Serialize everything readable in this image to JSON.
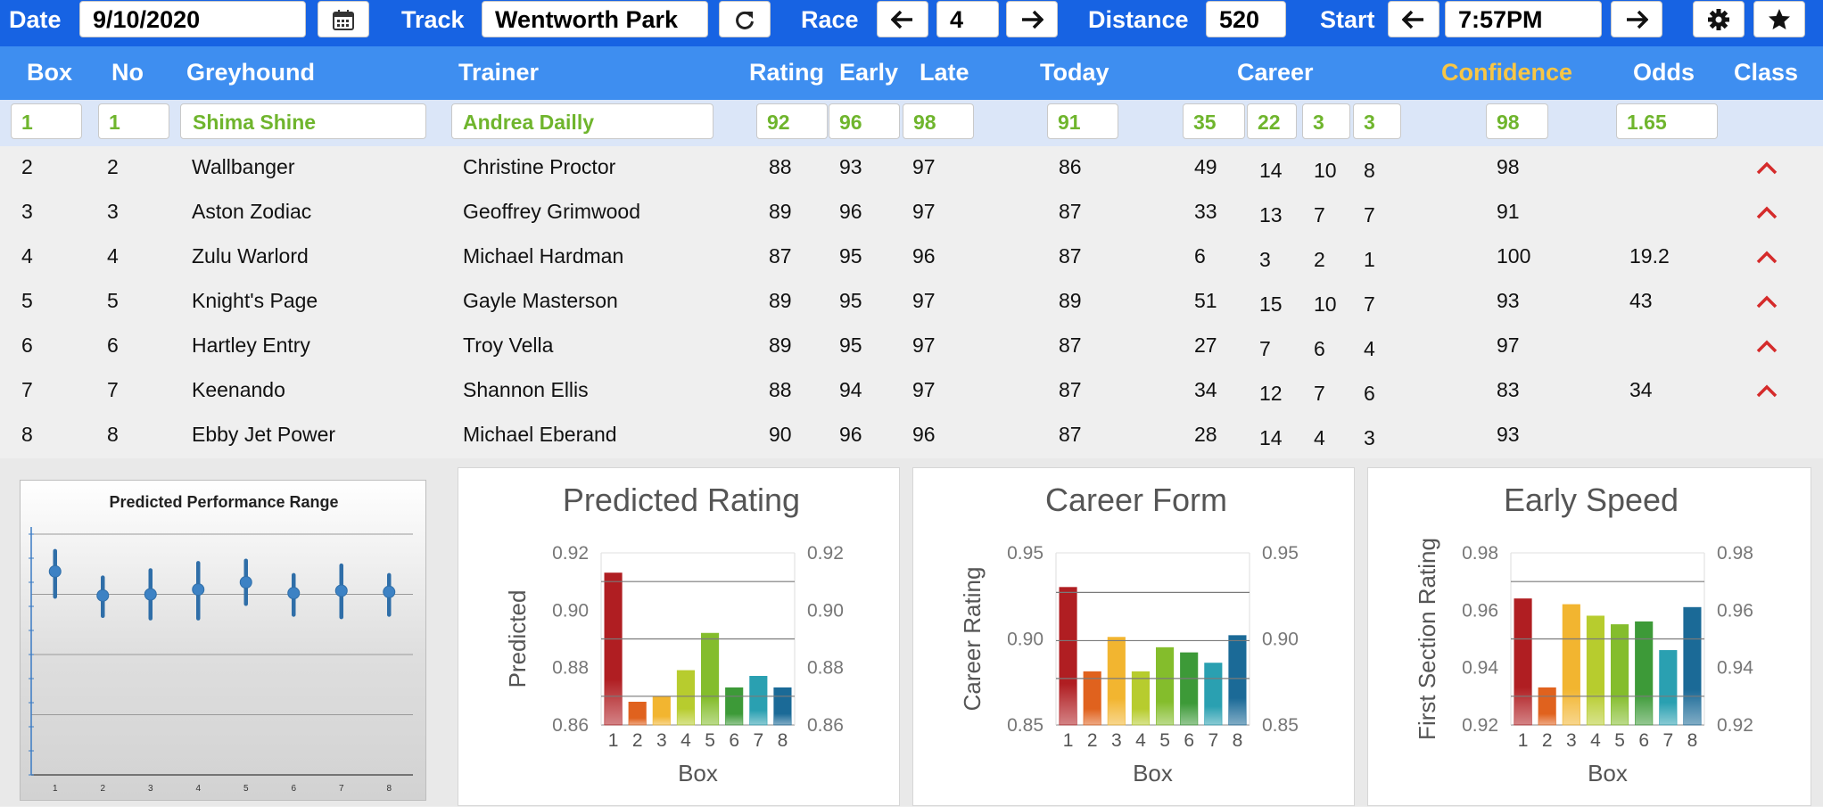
{
  "toolbar": {
    "date_label": "Date",
    "date_value": "9/10/2020",
    "calendar_icon": "calendar-icon",
    "track_label": "Track",
    "track_value": "Wentworth Park",
    "refresh_icon": "refresh-icon",
    "race_label": "Race",
    "race_value": "4",
    "distance_label": "Distance",
    "distance_value": "520",
    "start_label": "Start",
    "start_value": "7:57PM",
    "settings_icon": "gear-icon",
    "favorite_icon": "star-icon",
    "prev_icon": "arrow-left-icon",
    "next_icon": "arrow-right-icon"
  },
  "columns": {
    "box": "Box",
    "no": "No",
    "greyhound": "Greyhound",
    "trainer": "Trainer",
    "rating": "Rating",
    "early": "Early",
    "late": "Late",
    "today": "Today",
    "career": "Career",
    "confidence": "Confidence",
    "odds": "Odds",
    "class": "Class"
  },
  "selected": {
    "box": "1",
    "no": "1",
    "greyhound": "Shima Shine",
    "trainer": "Andrea Dailly",
    "rating": "92",
    "early": "96",
    "late": "98",
    "today": "91",
    "career": [
      "35",
      "22",
      "3",
      "3"
    ],
    "confidence": "98",
    "odds": "1.65"
  },
  "rows": [
    {
      "box": "2",
      "no": "2",
      "greyhound": "Wallbanger",
      "trainer": "Christine Proctor",
      "rating": "88",
      "early": "93",
      "late": "97",
      "today": "86",
      "c1": "49",
      "c2": "14",
      "c3": "10",
      "c4": "8",
      "confidence": "98",
      "odds": "",
      "class_up": true
    },
    {
      "box": "3",
      "no": "3",
      "greyhound": "Aston Zodiac",
      "trainer": "Geoffrey Grimwood",
      "rating": "89",
      "early": "96",
      "late": "97",
      "today": "87",
      "c1": "33",
      "c2": "13",
      "c3": "7",
      "c4": "7",
      "confidence": "91",
      "odds": "",
      "class_up": true
    },
    {
      "box": "4",
      "no": "4",
      "greyhound": "Zulu Warlord",
      "trainer": "Michael Hardman",
      "rating": "87",
      "early": "95",
      "late": "96",
      "today": "87",
      "c1": "6",
      "c2": "3",
      "c3": "2",
      "c4": "1",
      "confidence": "100",
      "odds": "19.2",
      "class_up": true
    },
    {
      "box": "5",
      "no": "5",
      "greyhound": "Knight's Page",
      "trainer": "Gayle Masterson",
      "rating": "89",
      "early": "95",
      "late": "97",
      "today": "89",
      "c1": "51",
      "c2": "15",
      "c3": "10",
      "c4": "7",
      "confidence": "93",
      "odds": "43",
      "class_up": true
    },
    {
      "box": "6",
      "no": "6",
      "greyhound": "Hartley Entry",
      "trainer": "Troy Vella",
      "rating": "89",
      "early": "95",
      "late": "97",
      "today": "87",
      "c1": "27",
      "c2": "7",
      "c3": "6",
      "c4": "4",
      "confidence": "97",
      "odds": "",
      "class_up": true
    },
    {
      "box": "7",
      "no": "7",
      "greyhound": "Keenando",
      "trainer": "Shannon Ellis",
      "rating": "88",
      "early": "94",
      "late": "97",
      "today": "87",
      "c1": "34",
      "c2": "12",
      "c3": "7",
      "c4": "6",
      "confidence": "83",
      "odds": "34",
      "class_up": true
    },
    {
      "box": "8",
      "no": "8",
      "greyhound": "Ebby Jet Power",
      "trainer": "Michael Eberand",
      "rating": "90",
      "early": "96",
      "late": "96",
      "today": "87",
      "c1": "28",
      "c2": "14",
      "c3": "4",
      "c4": "3",
      "confidence": "93",
      "odds": "",
      "class_up": false
    }
  ],
  "colors": {
    "toolbar": "#1763e3",
    "header": "#3e8ef0",
    "confidence_header": "#f8c645",
    "selected_text": "#6fb52d",
    "caret": "#d52b2b",
    "bars": [
      "#b01e22",
      "#e0621e",
      "#f2b530",
      "#b7cc2e",
      "#84bd2c",
      "#3d9a38",
      "#2aa0b1",
      "#1b6a97"
    ]
  },
  "chart_data": [
    {
      "type": "range",
      "title": "Predicted Performance Range",
      "categories": [
        "1",
        "2",
        "3",
        "4",
        "5",
        "6",
        "7",
        "8"
      ],
      "ylim": [
        0,
        1
      ],
      "mid": [
        0.845,
        0.745,
        0.75,
        0.77,
        0.8,
        0.755,
        0.765,
        0.76
      ],
      "low": [
        0.74,
        0.66,
        0.65,
        0.65,
        0.71,
        0.665,
        0.655,
        0.665
      ],
      "high": [
        0.93,
        0.82,
        0.85,
        0.88,
        0.89,
        0.83,
        0.87,
        0.83
      ]
    },
    {
      "type": "bar",
      "title": "Predicted Rating",
      "categories": [
        "1",
        "2",
        "3",
        "4",
        "5",
        "6",
        "7",
        "8"
      ],
      "values": [
        0.913,
        0.868,
        0.87,
        0.879,
        0.892,
        0.873,
        0.877,
        0.873
      ],
      "xlabel": "Box",
      "ylabel": "Predicted",
      "ylim": [
        0.86,
        0.92
      ],
      "yticks": [
        "0.92",
        "0.90",
        "0.88",
        "0.86"
      ],
      "tick_values": [
        0.92,
        0.9,
        0.88,
        0.86
      ],
      "reference_lines": [
        0.91,
        0.89,
        0.87
      ]
    },
    {
      "type": "bar",
      "title": "Career Form",
      "categories": [
        "1",
        "2",
        "3",
        "4",
        "5",
        "6",
        "7",
        "8"
      ],
      "values": [
        0.93,
        0.881,
        0.901,
        0.881,
        0.895,
        0.892,
        0.886,
        0.902
      ],
      "xlabel": "Box",
      "ylabel": "Career Rating",
      "ylim": [
        0.85,
        0.95
      ],
      "yticks": [
        "0.95",
        "0.90",
        "0.85"
      ],
      "tick_values": [
        0.95,
        0.9,
        0.85
      ],
      "reference_lines": [
        0.927,
        0.899,
        0.877
      ]
    },
    {
      "type": "bar",
      "title": "Early Speed",
      "categories": [
        "1",
        "2",
        "3",
        "4",
        "5",
        "6",
        "7",
        "8"
      ],
      "values": [
        0.964,
        0.933,
        0.962,
        0.958,
        0.955,
        0.956,
        0.946,
        0.961
      ],
      "xlabel": "Box",
      "ylabel": "First Section Rating",
      "ylim": [
        0.92,
        0.98
      ],
      "yticks": [
        "0.98",
        "0.96",
        "0.94",
        "0.92"
      ],
      "tick_values": [
        0.98,
        0.96,
        0.94,
        0.92
      ],
      "reference_lines": [
        0.97,
        0.95,
        0.93
      ]
    }
  ]
}
